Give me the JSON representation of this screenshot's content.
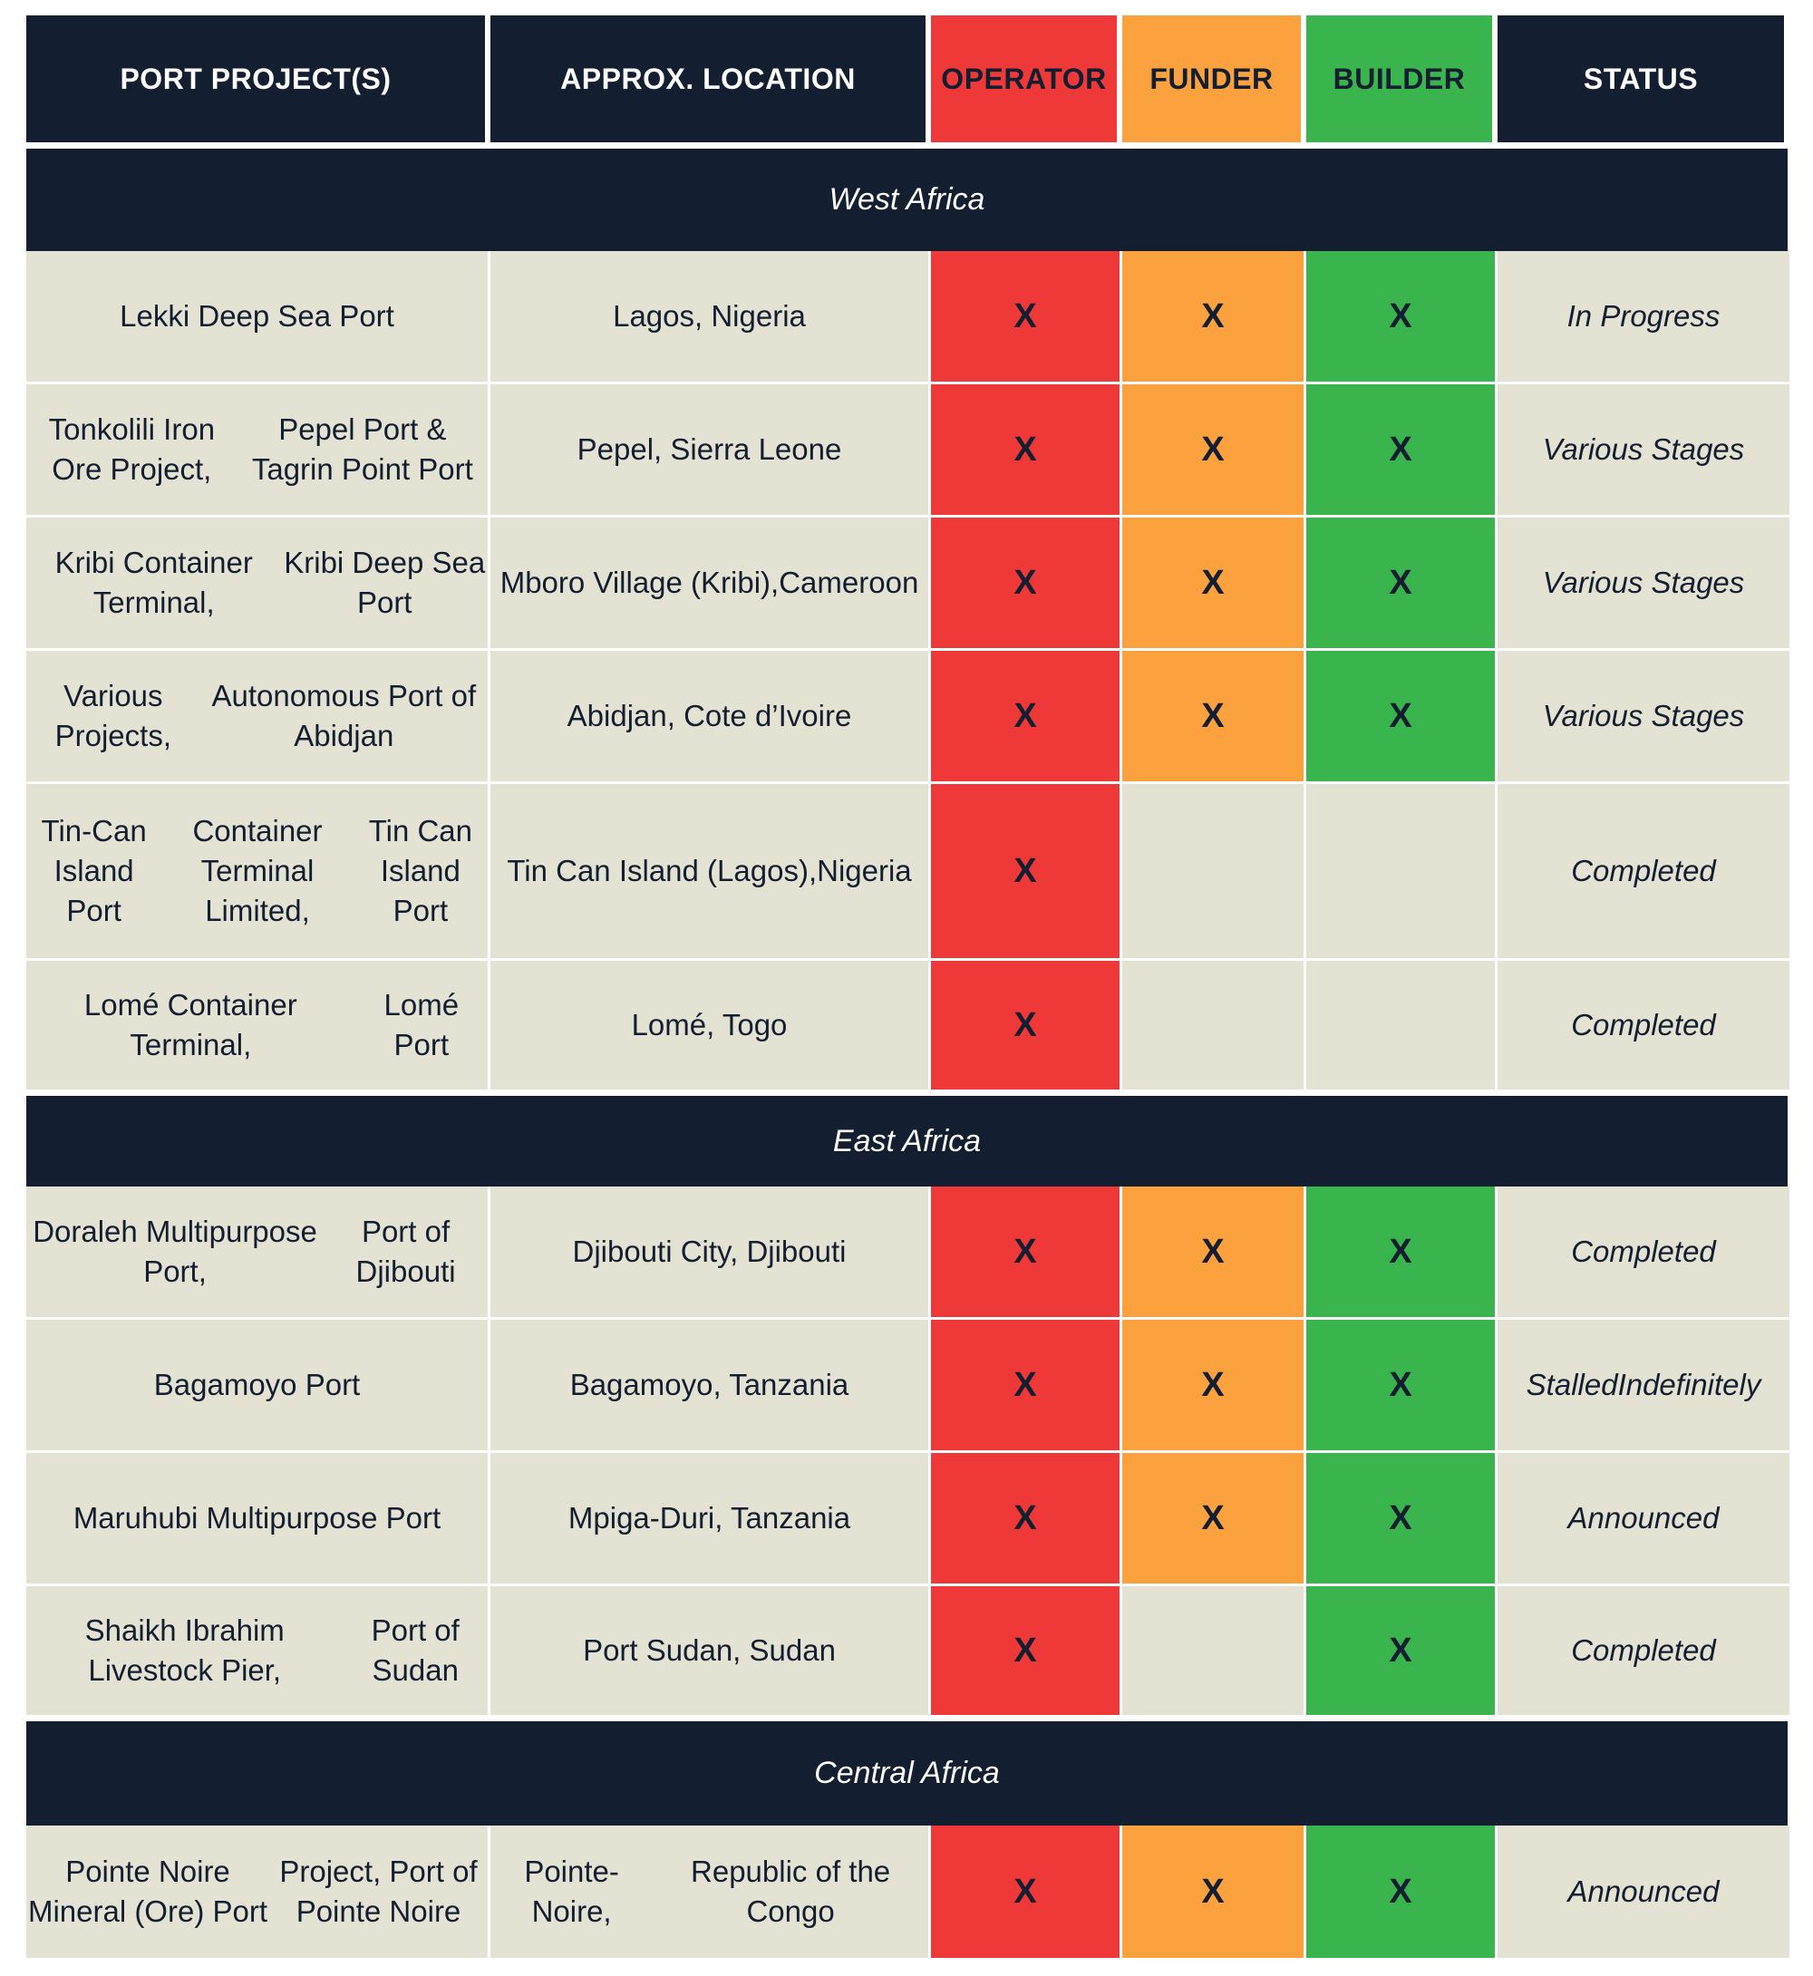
{
  "header": {
    "project": "PORT PROJECT(S)",
    "location": "APPROX. LOCATION",
    "operator": "OPERATOR",
    "funder": "FUNDER",
    "builder": "BUILDER",
    "status": "STATUS"
  },
  "mark": "X",
  "colors": {
    "navy": "#141e31",
    "operator": "#ef3939",
    "funder": "#fba23f",
    "builder": "#3ab54e",
    "cell": "#e4e2d3"
  },
  "regions": [
    {
      "name": "West Africa",
      "rows": [
        {
          "project": [
            "Lekki Deep Sea Port"
          ],
          "location": [
            "Lagos, Nigeria"
          ],
          "operator": true,
          "funder": true,
          "builder": true,
          "status": [
            "In Progress"
          ]
        },
        {
          "project": [
            "Tonkolili Iron Ore Project,",
            "Pepel Port & Tagrin Point Port"
          ],
          "location": [
            "Pepel, Sierra Leone"
          ],
          "operator": true,
          "funder": true,
          "builder": true,
          "status": [
            "Various Stages"
          ]
        },
        {
          "project": [
            "Kribi Container Terminal,",
            "Kribi Deep Sea Port"
          ],
          "location": [
            "Mboro Village (Kribi),",
            "Cameroon"
          ],
          "operator": true,
          "funder": true,
          "builder": true,
          "status": [
            "Various Stages"
          ]
        },
        {
          "project": [
            "Various Projects,",
            "Autonomous Port of Abidjan"
          ],
          "location": [
            "Abidjan, Cote d’Ivoire"
          ],
          "operator": true,
          "funder": true,
          "builder": true,
          "status": [
            "Various Stages"
          ]
        },
        {
          "project": [
            "Tin-Can Island Port",
            "Container Terminal Limited,",
            "Tin Can Island Port"
          ],
          "location": [
            "Tin Can Island (Lagos),",
            "Nigeria"
          ],
          "operator": true,
          "funder": false,
          "builder": false,
          "status": [
            "Completed"
          ]
        },
        {
          "project": [
            "Lomé Container Terminal,",
            "Lomé Port"
          ],
          "location": [
            "Lomé, Togo"
          ],
          "operator": true,
          "funder": false,
          "builder": false,
          "status": [
            "Completed"
          ]
        }
      ]
    },
    {
      "name": "East Africa",
      "rows": [
        {
          "project": [
            "Doraleh Multipurpose Port,",
            "Port of Djibouti"
          ],
          "location": [
            "Djibouti City, Djibouti"
          ],
          "operator": true,
          "funder": true,
          "builder": true,
          "status": [
            "Completed"
          ]
        },
        {
          "project": [
            "Bagamoyo Port"
          ],
          "location": [
            "Bagamoyo, Tanzania"
          ],
          "operator": true,
          "funder": true,
          "builder": true,
          "status": [
            "Stalled",
            "Indefinitely"
          ]
        },
        {
          "project": [
            "Maruhubi Multipurpose Port"
          ],
          "location": [
            "Mpiga-Duri, Tanzania"
          ],
          "operator": true,
          "funder": true,
          "builder": true,
          "status": [
            "Announced"
          ]
        },
        {
          "project": [
            "Shaikh Ibrahim Livestock Pier,",
            "Port of Sudan"
          ],
          "location": [
            "Port Sudan, Sudan"
          ],
          "operator": true,
          "funder": false,
          "builder": true,
          "status": [
            "Completed"
          ]
        }
      ]
    },
    {
      "name": "Central Africa",
      "rows": [
        {
          "project": [
            "Pointe Noire Mineral (Ore) Port",
            "Project, Port of Pointe Noire"
          ],
          "location": [
            "Pointe-Noire,",
            "Republic of the Congo"
          ],
          "operator": true,
          "funder": true,
          "builder": true,
          "status": [
            "Announced"
          ]
        }
      ]
    }
  ]
}
